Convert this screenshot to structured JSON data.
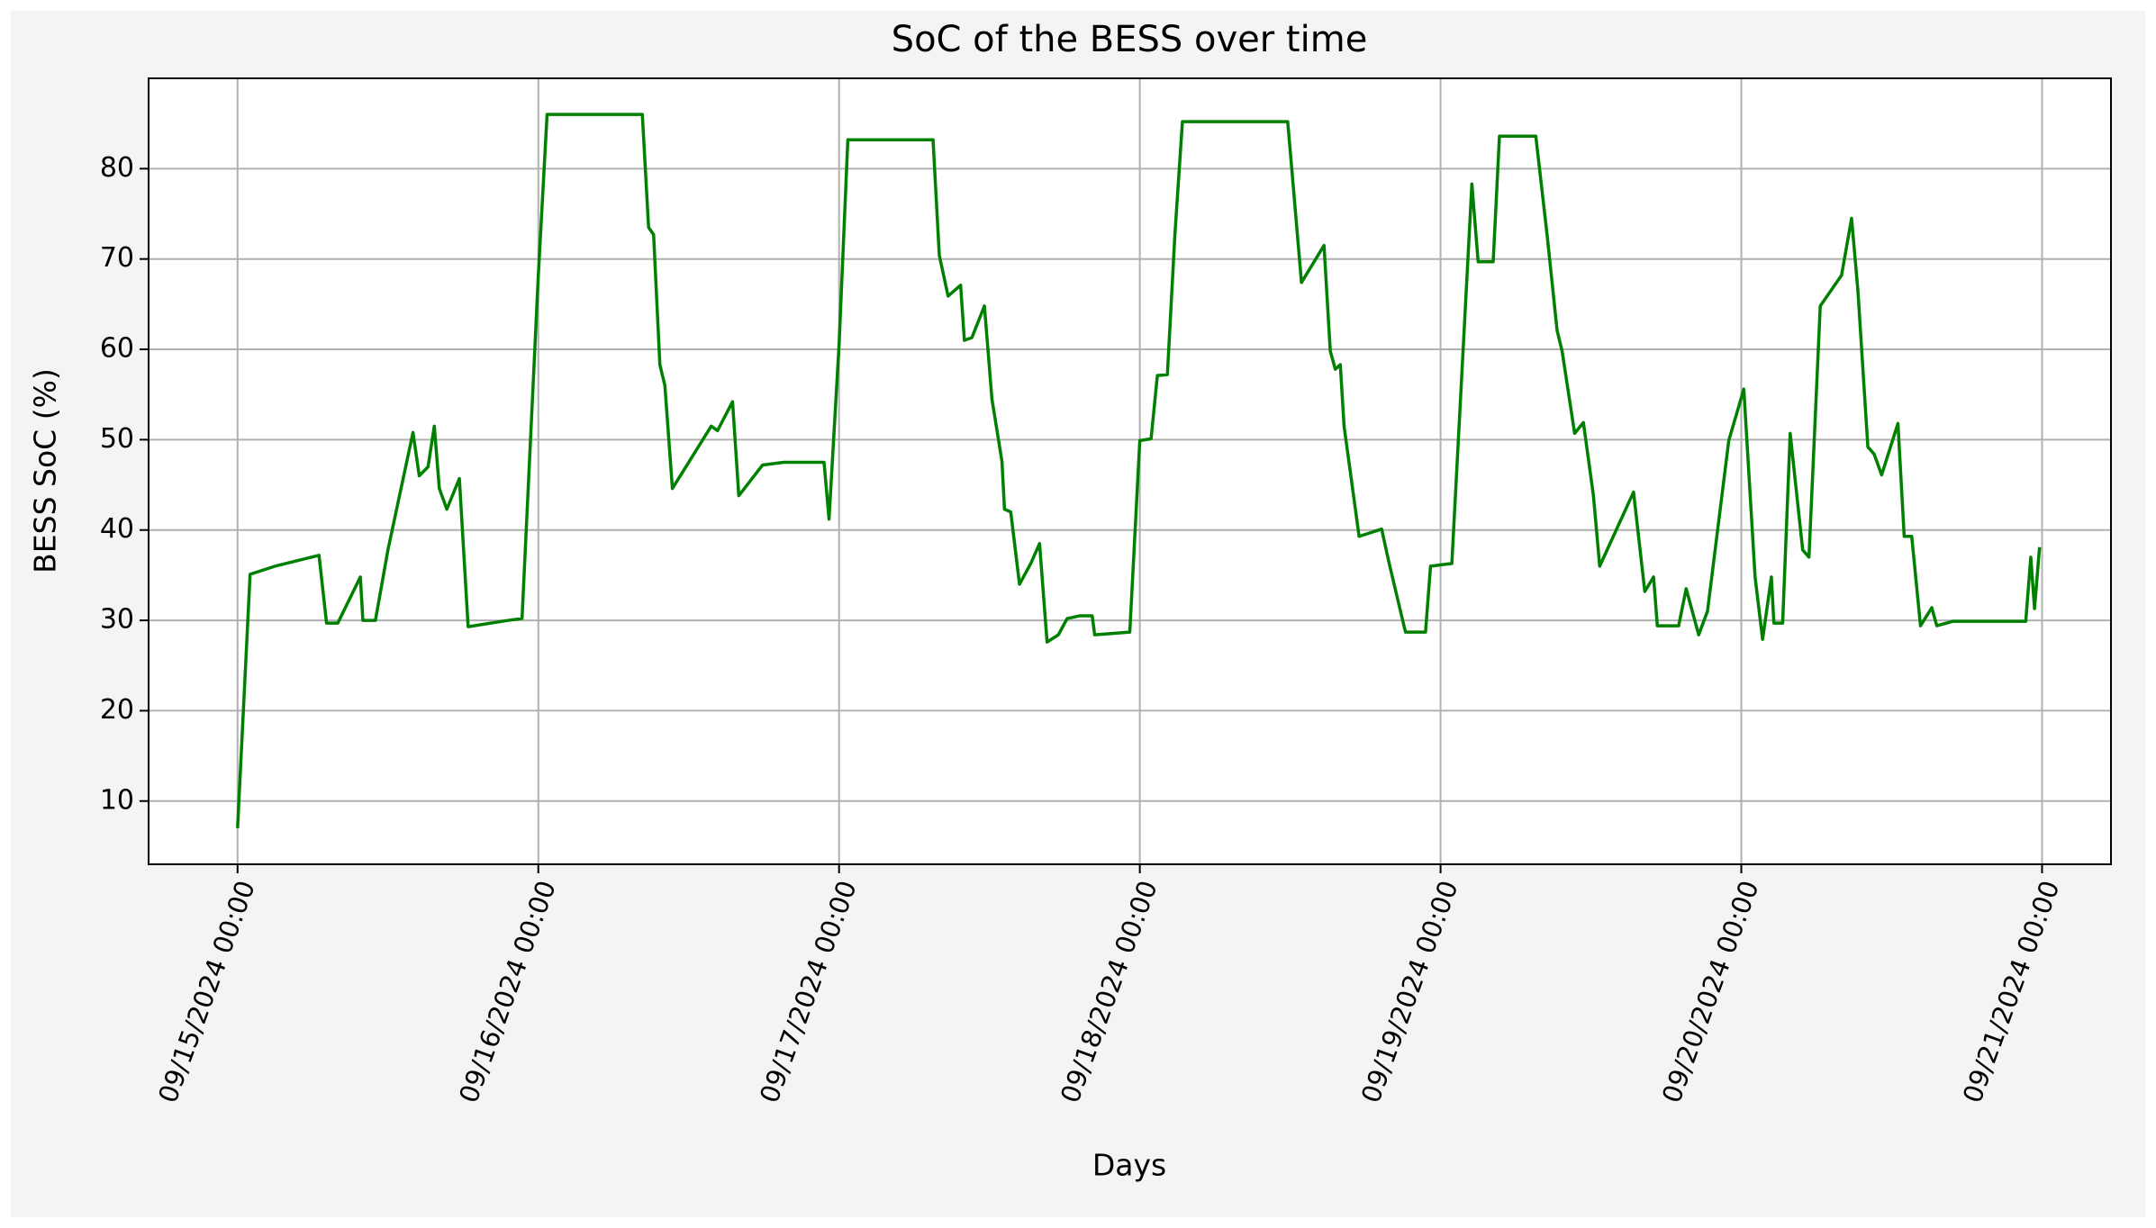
{
  "chart_data": {
    "type": "line",
    "title": "SoC of the BESS over time",
    "xlabel": "Days",
    "ylabel": "BESS SoC (%)",
    "x": [
      "2024-09-15T00:00",
      "2024-09-15T01:00",
      "2024-09-15T03:00",
      "2024-09-15T06:30",
      "2024-09-15T07:06",
      "2024-09-15T08:00",
      "2024-09-15T09:48",
      "2024-09-15T10:00",
      "2024-09-15T11:00",
      "2024-09-15T12:00",
      "2024-09-15T14:00",
      "2024-09-15T14:30",
      "2024-09-15T15:12",
      "2024-09-15T15:42",
      "2024-09-15T16:06",
      "2024-09-15T16:42",
      "2024-09-15T17:42",
      "2024-09-15T18:24",
      "2024-09-15T21:36",
      "2024-09-15T22:42",
      "2024-09-16T00:00",
      "2024-09-16T00:42",
      "2024-09-16T08:18",
      "2024-09-16T08:48",
      "2024-09-16T09:12",
      "2024-09-16T09:42",
      "2024-09-16T10:06",
      "2024-09-16T10:42",
      "2024-09-16T13:48",
      "2024-09-16T14:18",
      "2024-09-16T15:30",
      "2024-09-16T16:00",
      "2024-09-16T17:54",
      "2024-09-16T19:36",
      "2024-09-16T22:48",
      "2024-09-16T23:12",
      "2024-09-17T00:00",
      "2024-09-17T00:42",
      "2024-09-17T07:30",
      "2024-09-17T08:00",
      "2024-09-17T08:42",
      "2024-09-17T09:42",
      "2024-09-17T10:00",
      "2024-09-17T10:36",
      "2024-09-17T11:36",
      "2024-09-17T12:12",
      "2024-09-17T13:00",
      "2024-09-17T13:12",
      "2024-09-17T13:42",
      "2024-09-17T14:24",
      "2024-09-17T15:18",
      "2024-09-17T16:00",
      "2024-09-17T16:36",
      "2024-09-17T17:30",
      "2024-09-17T18:12",
      "2024-09-17T19:12",
      "2024-09-17T20:12",
      "2024-09-17T20:24",
      "2024-09-17T23:12",
      "2024-09-18T00:00",
      "2024-09-18T00:54",
      "2024-09-18T01:24",
      "2024-09-18T02:12",
      "2024-09-18T02:48",
      "2024-09-18T03:24",
      "2024-09-18T11:48",
      "2024-09-18T12:12",
      "2024-09-18T12:54",
      "2024-09-18T14:42",
      "2024-09-18T15:12",
      "2024-09-18T15:36",
      "2024-09-18T16:00",
      "2024-09-18T16:18",
      "2024-09-18T17:30",
      "2024-09-18T19:18",
      "2024-09-18T19:54",
      "2024-09-18T21:12",
      "2024-09-18T22:48",
      "2024-09-18T23:12",
      "2024-09-19T00:54",
      "2024-09-19T02:30",
      "2024-09-19T03:00",
      "2024-09-19T04:12",
      "2024-09-19T04:42",
      "2024-09-19T07:36",
      "2024-09-19T08:30",
      "2024-09-19T09:18",
      "2024-09-19T09:42",
      "2024-09-19T10:42",
      "2024-09-19T11:24",
      "2024-09-19T12:12",
      "2024-09-19T12:42",
      "2024-09-19T15:24",
      "2024-09-19T16:18",
      "2024-09-19T17:00",
      "2024-09-19T17:18",
      "2024-09-19T19:00",
      "2024-09-19T19:36",
      "2024-09-19T20:36",
      "2024-09-19T21:18",
      "2024-09-19T23:00",
      "2024-09-20T00:12",
      "2024-09-20T01:06",
      "2024-09-20T01:42",
      "2024-09-20T02:24",
      "2024-09-20T02:36",
      "2024-09-20T03:18",
      "2024-09-20T03:54",
      "2024-09-20T04:54",
      "2024-09-20T05:24",
      "2024-09-20T06:18",
      "2024-09-20T08:00",
      "2024-09-20T08:48",
      "2024-09-20T09:18",
      "2024-09-20T10:06",
      "2024-09-20T10:36",
      "2024-09-20T11:12",
      "2024-09-20T12:30",
      "2024-09-20T13:00",
      "2024-09-20T13:36",
      "2024-09-20T14:18",
      "2024-09-20T15:12",
      "2024-09-20T15:36",
      "2024-09-20T16:54",
      "2024-09-20T22:42",
      "2024-09-20T23:06",
      "2024-09-20T23:24",
      "2024-09-20T23:48"
    ],
    "series": [
      {
        "name": "BESS SoC",
        "color": "#008000",
        "values": [
          7,
          35.1,
          36,
          37.2,
          29.7,
          29.7,
          34.8,
          30,
          30,
          37.8,
          50.8,
          46,
          47,
          51.5,
          44.6,
          42.3,
          45.7,
          29.3,
          30,
          30.2,
          68.2,
          86,
          86,
          73.5,
          72.7,
          58.3,
          56,
          44.6,
          51.5,
          51,
          54.2,
          43.8,
          47.2,
          47.5,
          47.5,
          41.2,
          60.5,
          83.2,
          83.2,
          70.4,
          65.9,
          67.1,
          61,
          61.3,
          64.8,
          54.5,
          47.6,
          42.3,
          42,
          34,
          36.3,
          38.5,
          27.6,
          28.4,
          30.2,
          30.5,
          30.5,
          28.4,
          28.7,
          49.9,
          50.1,
          57.1,
          57.2,
          72.7,
          85.2,
          85.2,
          78.8,
          67.4,
          71.5,
          59.8,
          57.8,
          58.3,
          51.5,
          39.3,
          40.1,
          36.3,
          28.7,
          28.7,
          36,
          36.3,
          78.3,
          69.7,
          69.7,
          83.6,
          83.6,
          72.7,
          62.1,
          59.8,
          50.7,
          51.9,
          43.8,
          36,
          44.2,
          33.2,
          34.8,
          29.4,
          29.4,
          33.5,
          28.4,
          31,
          49.9,
          55.6,
          34.8,
          27.9,
          34.8,
          29.7,
          29.7,
          50.7,
          37.8,
          37,
          64.8,
          68.2,
          74.5,
          66.6,
          49.2,
          48.4,
          46.1,
          51.8,
          39.3,
          39.3,
          29.4,
          31.4,
          29.4,
          29.9,
          29.9,
          37,
          31.3,
          38.1
        ]
      }
    ],
    "xlim": [
      "2024-09-14T16:54",
      "2024-09-21T05:30"
    ],
    "xticks": [
      {
        "value": "2024-09-15T00:00",
        "label": "09/15/2024 00:00"
      },
      {
        "value": "2024-09-16T00:00",
        "label": "09/16/2024 00:00"
      },
      {
        "value": "2024-09-17T00:00",
        "label": "09/17/2024 00:00"
      },
      {
        "value": "2024-09-18T00:00",
        "label": "09/18/2024 00:00"
      },
      {
        "value": "2024-09-19T00:00",
        "label": "09/19/2024 00:00"
      },
      {
        "value": "2024-09-20T00:00",
        "label": "09/20/2024 00:00"
      },
      {
        "value": "2024-09-21T00:00",
        "label": "09/21/2024 00:00"
      }
    ],
    "ylim": [
      3,
      90
    ],
    "yticks": [
      10,
      20,
      30,
      40,
      50,
      60,
      70,
      80
    ],
    "grid": true
  }
}
